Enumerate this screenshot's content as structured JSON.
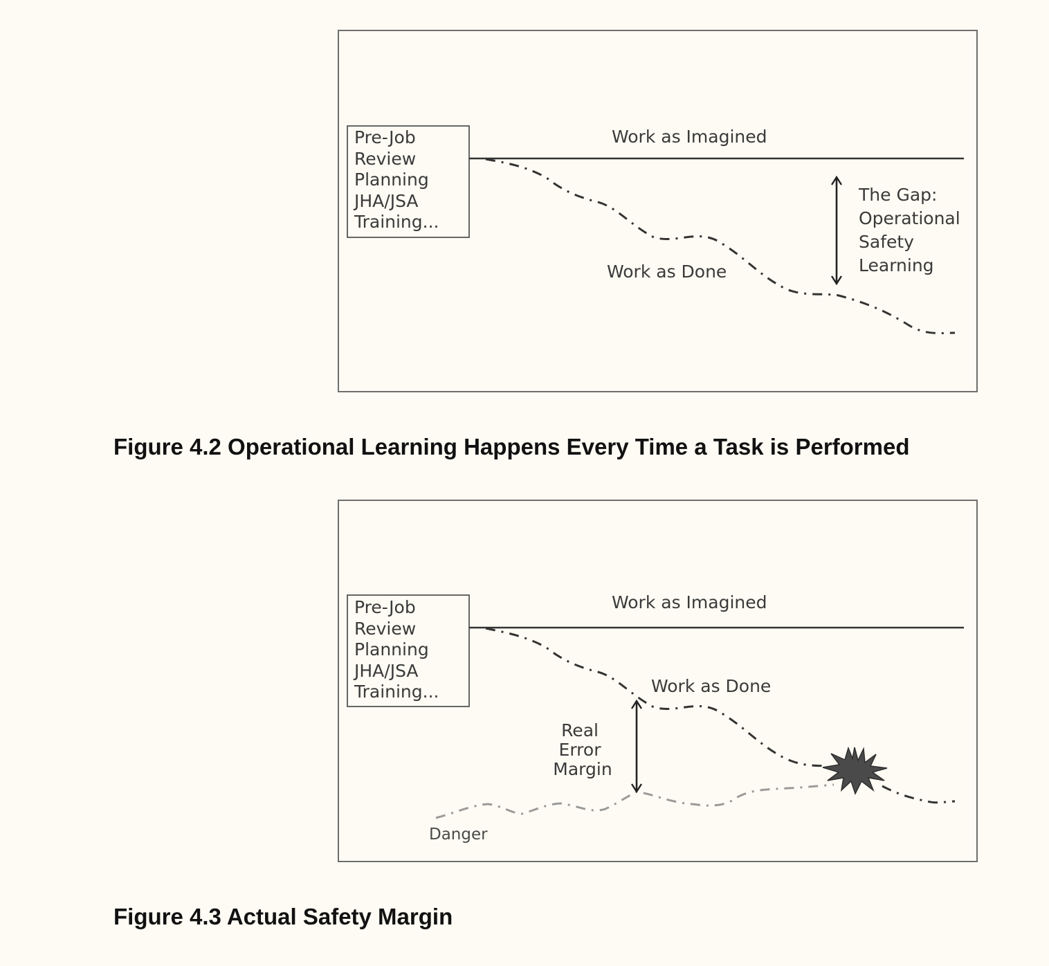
{
  "figure_4_2": {
    "box_lines": [
      "Pre-Job",
      "Review",
      "Planning",
      "JHA/JSA",
      "Training..."
    ],
    "imagined_label": "Work as Imagined",
    "done_label": "Work as Done",
    "gap_lines": [
      "The Gap:",
      "Operational",
      "Safety",
      "Learning"
    ],
    "caption": "Figure 4.2 Operational Learning Happens Every Time a Task is Performed"
  },
  "figure_4_3": {
    "box_lines": [
      "Pre-Job",
      "Review",
      "Planning",
      "JHA/JSA",
      "Training..."
    ],
    "imagined_label": "Work as Imagined",
    "done_label": "Work as Done",
    "margin_lines": [
      "Real",
      "Error",
      "Margin"
    ],
    "danger_label": "Danger",
    "caption": "Figure 4.3 Actual Safety Margin"
  },
  "colors": {
    "background": "#fdfbf3",
    "line": "#333333",
    "danger_line": "#9a9a9a",
    "burst": "#4a4a4a"
  }
}
